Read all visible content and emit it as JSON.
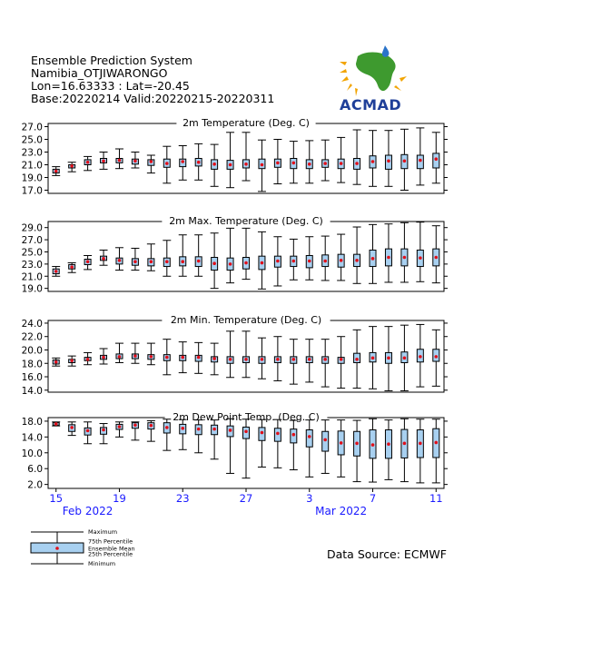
{
  "header": {
    "line1": "Ensemble Prediction System",
    "line2": "Namibia_OTJIWARONGO",
    "line3": "Lon=16.63333 : Lat=-20.45",
    "line4": "Base:20220214 Valid:20220215-20220311"
  },
  "logo": {
    "text": "ACMAD"
  },
  "colors": {
    "box": "#a8d0f0",
    "mean": "#e0101a",
    "axis_date": "#1a1aff"
  },
  "x_axis": {
    "day_ticks": [
      "15",
      "19",
      "23",
      "27",
      "3",
      "7",
      "11"
    ],
    "month_labels": [
      "Feb 2022",
      "Mar 2022"
    ]
  },
  "legend": {
    "max": "Maximum",
    "p75": "75th Percentile",
    "mean": "Ensemble Mean",
    "p25": "25th Percentile",
    "min": "Minimum"
  },
  "data_source": "Data Source: ECMWF",
  "chart_data": [
    {
      "type": "boxplot",
      "title": "2m Temperature (Deg. C)",
      "ylim": [
        16.5,
        27.5
      ],
      "yticks": [
        "17.0",
        "19.0",
        "21.0",
        "23.0",
        "25.0",
        "27.0"
      ],
      "dates": [
        "Feb 15",
        "Feb 16",
        "Feb 17",
        "Feb 18",
        "Feb 19",
        "Feb 20",
        "Feb 21",
        "Feb 22",
        "Feb 23",
        "Feb 24",
        "Feb 25",
        "Feb 26",
        "Feb 27",
        "Feb 28",
        "Mar 1",
        "Mar 2",
        "Mar 3",
        "Mar 4",
        "Mar 5",
        "Mar 6",
        "Mar 7",
        "Mar 8",
        "Mar 9",
        "Mar 10",
        "Mar 11"
      ],
      "min": [
        19.3,
        19.9,
        20.1,
        20.3,
        20.4,
        20.5,
        19.7,
        18.1,
        18.6,
        18.6,
        17.6,
        17.4,
        18.5,
        16.8,
        18.0,
        18.1,
        18.1,
        18.5,
        18.2,
        17.9,
        17.6,
        17.6,
        17.0,
        17.8,
        18.1
      ],
      "p25": [
        19.7,
        20.5,
        21.0,
        21.3,
        21.3,
        21.1,
        20.9,
        20.6,
        20.7,
        20.8,
        20.3,
        20.3,
        20.5,
        20.4,
        20.6,
        20.4,
        20.4,
        20.6,
        20.4,
        20.3,
        20.5,
        20.3,
        20.4,
        20.4,
        20.5
      ],
      "mean": [
        20.0,
        20.8,
        21.4,
        21.6,
        21.7,
        21.6,
        21.5,
        21.2,
        21.5,
        21.4,
        21.1,
        21.0,
        21.1,
        21.0,
        21.3,
        21.3,
        21.1,
        21.2,
        21.2,
        21.2,
        21.5,
        21.6,
        21.6,
        21.7,
        21.9
      ],
      "p75": [
        20.3,
        21.0,
        21.8,
        22.0,
        22.0,
        21.9,
        21.8,
        21.9,
        21.9,
        22.0,
        21.8,
        21.7,
        21.8,
        21.9,
        21.9,
        22.0,
        21.8,
        21.8,
        21.9,
        22.0,
        22.4,
        22.5,
        22.6,
        22.5,
        22.8
      ],
      "max": [
        20.7,
        21.4,
        22.3,
        23.0,
        23.5,
        23.0,
        22.5,
        23.9,
        24.0,
        24.3,
        24.2,
        26.1,
        26.1,
        24.9,
        25.0,
        24.7,
        24.8,
        24.9,
        25.3,
        26.5,
        26.4,
        26.4,
        26.6,
        26.8,
        26.1
      ]
    },
    {
      "type": "boxplot",
      "title": "2m Max. Temperature (Deg. C)",
      "ylim": [
        18.5,
        30.0
      ],
      "yticks": [
        "19.0",
        "21.0",
        "23.0",
        "25.0",
        "27.0",
        "29.0"
      ],
      "dates": [
        "Feb 15",
        "Feb 16",
        "Feb 17",
        "Feb 18",
        "Feb 19",
        "Feb 20",
        "Feb 21",
        "Feb 22",
        "Feb 23",
        "Feb 24",
        "Feb 25",
        "Feb 26",
        "Feb 27",
        "Feb 28",
        "Mar 1",
        "Mar 2",
        "Mar 3",
        "Mar 4",
        "Mar 5",
        "Mar 6",
        "Mar 7",
        "Mar 8",
        "Mar 9",
        "Mar 10",
        "Mar 11"
      ],
      "min": [
        21.0,
        21.6,
        22.1,
        22.8,
        22.0,
        22.0,
        21.9,
        21.0,
        21.0,
        21.0,
        19.0,
        19.9,
        20.5,
        18.9,
        19.4,
        20.4,
        20.4,
        20.3,
        20.3,
        19.8,
        19.8,
        20.0,
        20.0,
        20.1,
        19.9
      ],
      "p25": [
        21.4,
        22.2,
        22.9,
        23.6,
        23.0,
        22.8,
        22.7,
        22.6,
        22.7,
        22.6,
        22.0,
        22.0,
        22.2,
        22.1,
        22.5,
        22.6,
        22.4,
        22.6,
        22.5,
        22.6,
        22.6,
        22.7,
        22.7,
        22.6,
        22.7
      ],
      "mean": [
        21.8,
        22.5,
        23.4,
        23.9,
        23.6,
        23.4,
        23.4,
        23.4,
        23.4,
        23.5,
        23.1,
        23.0,
        23.2,
        23.2,
        23.5,
        23.5,
        23.5,
        23.5,
        23.6,
        23.6,
        23.9,
        24.1,
        24.1,
        24.0,
        24.1
      ],
      "p75": [
        22.2,
        22.9,
        23.8,
        24.3,
        24.0,
        23.9,
        23.9,
        24.0,
        24.2,
        24.2,
        24.1,
        24.0,
        24.1,
        24.3,
        24.3,
        24.3,
        24.4,
        24.5,
        24.6,
        24.6,
        25.3,
        25.5,
        25.5,
        25.3,
        25.5
      ],
      "max": [
        22.6,
        23.2,
        24.4,
        25.3,
        25.7,
        25.6,
        26.3,
        26.9,
        27.8,
        27.8,
        28.1,
        28.9,
        28.9,
        28.3,
        27.5,
        27.1,
        27.5,
        27.6,
        27.9,
        29.1,
        29.5,
        29.6,
        29.8,
        29.9,
        29.3
      ]
    },
    {
      "type": "boxplot",
      "title": "2m Min. Temperature (Deg. C)",
      "ylim": [
        13.7,
        24.4
      ],
      "yticks": [
        "14.0",
        "16.0",
        "18.0",
        "20.0",
        "22.0",
        "24.0"
      ],
      "dates": [
        "Feb 15",
        "Feb 16",
        "Feb 17",
        "Feb 18",
        "Feb 19",
        "Feb 20",
        "Feb 21",
        "Feb 22",
        "Feb 23",
        "Feb 24",
        "Feb 25",
        "Feb 26",
        "Feb 27",
        "Feb 28",
        "Mar 1",
        "Mar 2",
        "Mar 3",
        "Mar 4",
        "Mar 5",
        "Mar 6",
        "Mar 7",
        "Mar 8",
        "Mar 9",
        "Mar 10",
        "Mar 11"
      ],
      "min": [
        17.6,
        17.6,
        17.8,
        17.9,
        18.1,
        18.0,
        17.8,
        16.3,
        16.6,
        16.5,
        16.3,
        15.9,
        15.9,
        15.7,
        15.4,
        14.9,
        15.2,
        14.5,
        14.3,
        14.3,
        14.2,
        13.9,
        13.9,
        14.5,
        14.6
      ],
      "p25": [
        17.9,
        18.1,
        18.4,
        18.6,
        18.7,
        18.7,
        18.6,
        18.4,
        18.4,
        18.3,
        18.2,
        18.0,
        18.1,
        18.0,
        18.1,
        18.0,
        18.1,
        18.0,
        18.0,
        18.1,
        18.2,
        18.0,
        18.1,
        18.2,
        18.3
      ],
      "mean": [
        18.2,
        18.4,
        18.6,
        18.9,
        19.0,
        19.1,
        19.0,
        18.9,
        18.9,
        18.9,
        18.7,
        18.6,
        18.6,
        18.6,
        18.6,
        18.6,
        18.6,
        18.6,
        18.6,
        18.6,
        18.8,
        18.8,
        18.8,
        19.0,
        19.0
      ],
      "p75": [
        18.5,
        18.6,
        18.9,
        19.2,
        19.4,
        19.4,
        19.3,
        19.3,
        19.2,
        19.2,
        19.0,
        19.0,
        19.0,
        19.0,
        19.0,
        19.0,
        19.0,
        19.0,
        18.9,
        19.5,
        19.6,
        19.6,
        19.7,
        20.1,
        20.1
      ],
      "max": [
        18.8,
        19.1,
        19.6,
        20.2,
        21.0,
        21.0,
        21.0,
        21.6,
        21.2,
        21.1,
        21.0,
        22.8,
        22.8,
        21.8,
        22.0,
        21.6,
        21.6,
        21.6,
        22.0,
        23.0,
        23.5,
        23.5,
        23.7,
        23.8,
        23.0
      ]
    },
    {
      "type": "boxplot",
      "title": "2m Dew Point Temp. (Deg. C)",
      "ylim": [
        1.0,
        18.9
      ],
      "yticks": [
        "2.0",
        "6.0",
        "10.0",
        "14.0",
        "18.0"
      ],
      "dates": [
        "Feb 15",
        "Feb 16",
        "Feb 17",
        "Feb 18",
        "Feb 19",
        "Feb 20",
        "Feb 21",
        "Feb 22",
        "Feb 23",
        "Feb 24",
        "Feb 25",
        "Feb 26",
        "Feb 27",
        "Feb 28",
        "Mar 1",
        "Mar 2",
        "Mar 3",
        "Mar 4",
        "Mar 5",
        "Mar 6",
        "Mar 7",
        "Mar 8",
        "Mar 9",
        "Mar 10",
        "Mar 11"
      ],
      "min": [
        16.8,
        14.4,
        12.3,
        12.3,
        14.0,
        13.2,
        12.9,
        10.6,
        10.8,
        10.0,
        8.4,
        4.8,
        3.6,
        6.4,
        6.2,
        5.7,
        3.9,
        4.8,
        3.9,
        2.7,
        2.6,
        3.2,
        2.7,
        2.4,
        2.4
      ],
      "p25": [
        17.0,
        15.4,
        14.5,
        14.7,
        15.9,
        16.2,
        16.0,
        15.0,
        14.8,
        14.6,
        14.6,
        14.1,
        13.6,
        13.1,
        12.9,
        12.5,
        11.5,
        10.4,
        9.5,
        9.2,
        8.6,
        8.6,
        8.7,
        8.8,
        8.8
      ],
      "mean": [
        17.3,
        16.4,
        15.6,
        15.8,
        16.6,
        17.0,
        16.9,
        16.4,
        16.2,
        16.0,
        16.0,
        15.7,
        15.4,
        15.1,
        14.9,
        14.6,
        14.1,
        13.3,
        12.5,
        12.4,
        12.0,
        12.2,
        12.4,
        12.4,
        12.6
      ],
      "p75": [
        17.6,
        17.1,
        16.3,
        16.4,
        17.2,
        17.6,
        17.6,
        17.6,
        17.2,
        17.1,
        17.0,
        16.8,
        16.5,
        16.4,
        16.2,
        16.0,
        15.8,
        15.4,
        15.5,
        15.4,
        15.8,
        15.8,
        15.9,
        15.8,
        16.1
      ],
      "max": [
        17.8,
        17.8,
        17.8,
        17.4,
        17.8,
        17.8,
        18.1,
        18.5,
        18.4,
        18.3,
        18.3,
        18.6,
        18.5,
        18.4,
        18.4,
        18.2,
        18.3,
        18.3,
        18.3,
        18.2,
        18.6,
        18.3,
        18.6,
        18.5,
        18.5
      ]
    }
  ]
}
